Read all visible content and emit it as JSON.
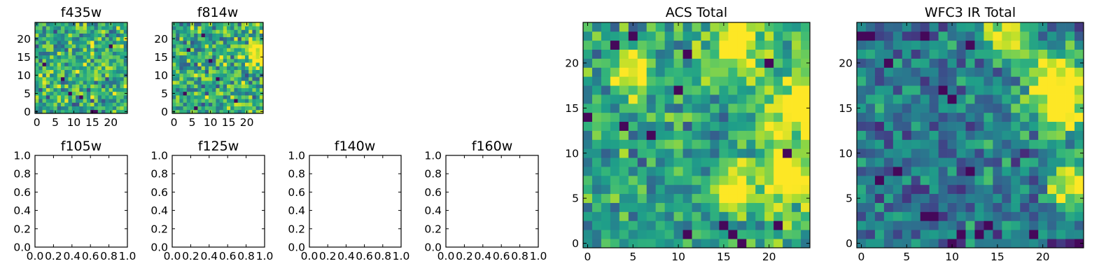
{
  "chart_data": [
    {
      "type": "heatmap",
      "title": "f435w",
      "grid": [
        25,
        25
      ],
      "xlim": [
        -0.5,
        24.5
      ],
      "ylim": [
        -0.5,
        24.5
      ],
      "xticks": [
        "0",
        "5",
        "10",
        "15",
        "20"
      ],
      "yticks": [
        "0",
        "5",
        "10",
        "15",
        "20"
      ],
      "pattern": "noise",
      "seed": 11,
      "hot": [],
      "dark": [
        [
          9,
          5
        ],
        [
          12,
          4
        ],
        [
          15,
          0
        ],
        [
          16,
          0
        ],
        [
          2,
          13
        ],
        [
          20,
          18
        ],
        [
          7,
          9
        ]
      ]
    },
    {
      "type": "heatmap",
      "title": "f814w",
      "grid": [
        25,
        25
      ],
      "xlim": [
        -0.5,
        24.5
      ],
      "ylim": [
        -0.5,
        24.5
      ],
      "xticks": [
        "0",
        "5",
        "10",
        "15",
        "20"
      ],
      "yticks": [
        "0",
        "5",
        "10",
        "15",
        "20"
      ],
      "pattern": "noise",
      "seed": 29,
      "hot": [
        [
          23,
          16,
          2.5
        ]
      ],
      "dark": [
        [
          4,
          17
        ],
        [
          8,
          21
        ],
        [
          12,
          9
        ],
        [
          3,
          5
        ],
        [
          17,
          3
        ],
        [
          10,
          14
        ],
        [
          6,
          1
        ]
      ]
    },
    {
      "type": "empty",
      "title": "f105w",
      "xlim": [
        0,
        1
      ],
      "ylim": [
        0,
        1
      ],
      "xticks": [
        "0.0",
        "0.2",
        "0.4",
        "0.6",
        "0.8",
        "1.0"
      ],
      "yticks": [
        "0.0",
        "0.2",
        "0.4",
        "0.6",
        "0.8",
        "1.0"
      ]
    },
    {
      "type": "empty",
      "title": "f125w",
      "xlim": [
        0,
        1
      ],
      "ylim": [
        0,
        1
      ],
      "xticks": [
        "0.0",
        "0.2",
        "0.4",
        "0.6",
        "0.8",
        "1.0"
      ],
      "yticks": [
        "0.0",
        "0.2",
        "0.4",
        "0.6",
        "0.8",
        "1.0"
      ]
    },
    {
      "type": "empty",
      "title": "f140w",
      "xlim": [
        0,
        1
      ],
      "ylim": [
        0,
        1
      ],
      "xticks": [
        "0.0",
        "0.2",
        "0.4",
        "0.6",
        "0.8",
        "1.0"
      ],
      "yticks": [
        "0.0",
        "0.2",
        "0.4",
        "0.6",
        "0.8",
        "1.0"
      ]
    },
    {
      "type": "empty",
      "title": "f160w",
      "xlim": [
        0,
        1
      ],
      "ylim": [
        0,
        1
      ],
      "xticks": [
        "0.0",
        "0.2",
        "0.4",
        "0.6",
        "0.8",
        "1.0"
      ],
      "yticks": [
        "0.0",
        "0.2",
        "0.4",
        "0.6",
        "0.8",
        "1.0"
      ]
    },
    {
      "type": "heatmap",
      "title": "ACS Total",
      "grid": [
        25,
        25
      ],
      "xlim": [
        -0.5,
        24.5
      ],
      "ylim": [
        -0.5,
        24.5
      ],
      "xticks": [
        "0",
        "5",
        "10",
        "15",
        "20"
      ],
      "yticks": [
        "0",
        "5",
        "10",
        "15",
        "20"
      ],
      "pattern": "acs",
      "seed": 47,
      "hot": [
        [
          16,
          22,
          2.2
        ],
        [
          23,
          15,
          2.8
        ],
        [
          22,
          7,
          2.2
        ],
        [
          5,
          19,
          1.6
        ],
        [
          16,
          6,
          1.6
        ]
      ],
      "dark": [
        [
          0,
          14
        ],
        [
          5,
          23
        ],
        [
          7,
          12
        ],
        [
          4,
          13
        ],
        [
          3,
          22
        ],
        [
          11,
          21
        ],
        [
          10,
          17
        ],
        [
          15,
          2
        ],
        [
          16,
          1
        ],
        [
          17,
          0
        ],
        [
          11,
          1
        ],
        [
          21,
          2
        ],
        [
          22,
          10
        ],
        [
          20,
          20
        ]
      ]
    },
    {
      "type": "heatmap",
      "title": "WFC3 IR Total",
      "grid": [
        25,
        25
      ],
      "xlim": [
        -0.5,
        24.5
      ],
      "ylim": [
        -0.5,
        24.5
      ],
      "xticks": [
        "0",
        "5",
        "10",
        "15",
        "20"
      ],
      "yticks": [
        "0",
        "5",
        "10",
        "15",
        "20"
      ],
      "pattern": "ir",
      "seed": 83,
      "hot": [
        [
          16,
          23,
          2.0
        ],
        [
          23,
          15,
          2.6
        ],
        [
          23,
          6,
          2.0
        ],
        [
          21,
          18,
          2.2
        ]
      ],
      "dark": [
        [
          0,
          23
        ],
        [
          1,
          23
        ],
        [
          7,
          23
        ],
        [
          12,
          22
        ],
        [
          3,
          20
        ],
        [
          9,
          17
        ],
        [
          10,
          16
        ],
        [
          7,
          3
        ],
        [
          8,
          3
        ],
        [
          10,
          0
        ],
        [
          11,
          1
        ],
        [
          13,
          1
        ],
        [
          14,
          2
        ],
        [
          19,
          1
        ],
        [
          24,
          0
        ],
        [
          12,
          8
        ],
        [
          2,
          7
        ],
        [
          4,
          8
        ]
      ]
    }
  ],
  "colormap": {
    "name": "viridis",
    "stops": [
      "#440154",
      "#482878",
      "#3e4989",
      "#31688e",
      "#26828e",
      "#1f9e89",
      "#35b779",
      "#6ece58",
      "#b5de2b",
      "#fde725"
    ]
  }
}
